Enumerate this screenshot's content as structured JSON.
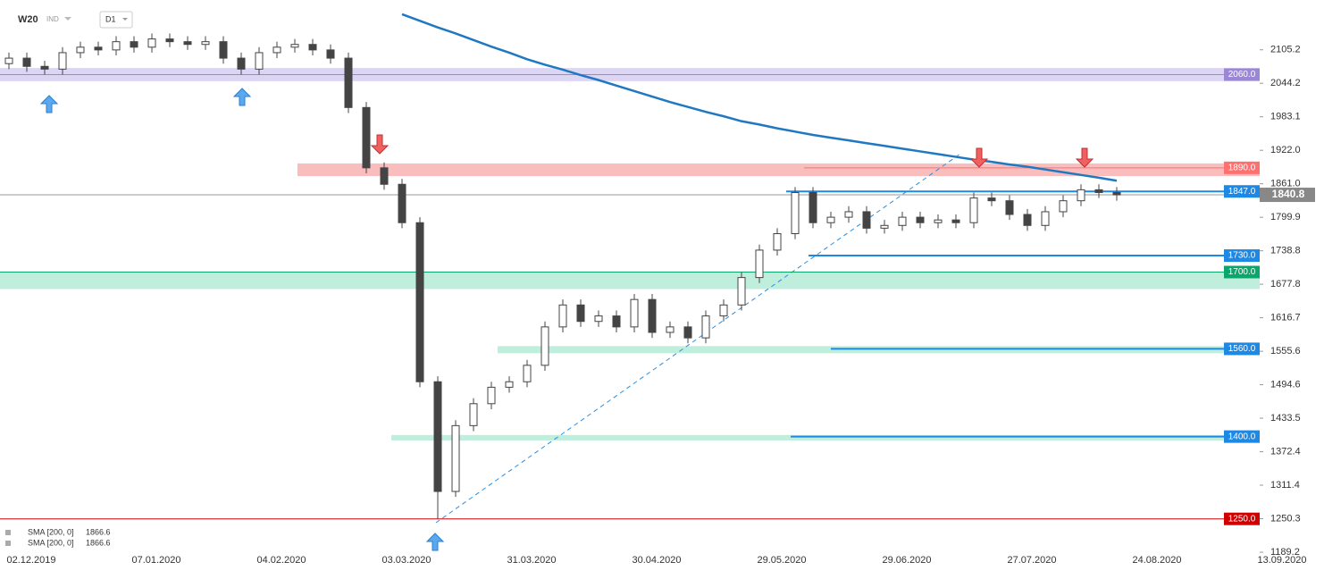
{
  "chart_data": {
    "type": "candlestick",
    "symbol": "W20",
    "symbol_type": "IND",
    "interval": "D1",
    "xtick_labels": [
      "02.12.2019",
      "07.01.2020",
      "04.02.2020",
      "03.03.2020",
      "31.03.2020",
      "30.04.2020",
      "29.05.2020",
      "29.06.2020",
      "27.07.2020",
      "24.08.2020",
      "13.09.2020"
    ],
    "open": [
      2080,
      2090,
      2075,
      2070,
      2100,
      2110,
      2105,
      2120,
      2110,
      2125,
      2120,
      2115,
      2120,
      2090,
      2070,
      2100,
      2110,
      2115,
      2105,
      2090,
      2000,
      1890,
      1860,
      1790,
      1500,
      1300,
      1420,
      1460,
      1490,
      1500,
      1530,
      1600,
      1640,
      1610,
      1620,
      1600,
      1650,
      1590,
      1600,
      1580,
      1620,
      1640,
      1690,
      1740,
      1770,
      1845,
      1790,
      1800,
      1810,
      1780,
      1785,
      1800,
      1790,
      1795,
      1790,
      1835,
      1830,
      1805,
      1785,
      1810,
      1830,
      1850,
      1845
    ],
    "high": [
      2100,
      2100,
      2085,
      2110,
      2120,
      2120,
      2130,
      2130,
      2135,
      2135,
      2130,
      2130,
      2130,
      2100,
      2110,
      2120,
      2125,
      2125,
      2115,
      2100,
      2010,
      1900,
      1870,
      1800,
      1510,
      1430,
      1470,
      1500,
      1510,
      1540,
      1610,
      1650,
      1650,
      1630,
      1630,
      1660,
      1660,
      1610,
      1610,
      1630,
      1650,
      1700,
      1750,
      1780,
      1855,
      1855,
      1810,
      1820,
      1820,
      1795,
      1810,
      1810,
      1805,
      1805,
      1845,
      1845,
      1840,
      1815,
      1820,
      1840,
      1860,
      1860,
      1855
    ],
    "low": [
      2070,
      2065,
      2060,
      2060,
      2090,
      2095,
      2095,
      2100,
      2100,
      2110,
      2105,
      2105,
      2080,
      2060,
      2060,
      2090,
      2100,
      2095,
      2080,
      1990,
      1880,
      1850,
      1780,
      1490,
      1250,
      1290,
      1410,
      1450,
      1480,
      1490,
      1520,
      1590,
      1600,
      1600,
      1590,
      1590,
      1580,
      1580,
      1570,
      1570,
      1610,
      1630,
      1680,
      1730,
      1760,
      1780,
      1780,
      1790,
      1770,
      1770,
      1775,
      1780,
      1780,
      1780,
      1780,
      1820,
      1795,
      1775,
      1775,
      1800,
      1820,
      1835,
      1830
    ],
    "close": [
      2090,
      2075,
      2070,
      2100,
      2110,
      2105,
      2120,
      2110,
      2125,
      2120,
      2115,
      2120,
      2090,
      2070,
      2100,
      2110,
      2115,
      2105,
      2090,
      2000,
      1890,
      1860,
      1790,
      1500,
      1300,
      1420,
      1460,
      1490,
      1500,
      1530,
      1600,
      1640,
      1610,
      1620,
      1600,
      1650,
      1590,
      1600,
      1580,
      1620,
      1640,
      1690,
      1740,
      1770,
      1845,
      1790,
      1800,
      1810,
      1780,
      1785,
      1800,
      1790,
      1795,
      1790,
      1835,
      1830,
      1805,
      1785,
      1810,
      1830,
      1850,
      1845,
      1840.8
    ],
    "sma": {
      "name": "SMA [200, 0]",
      "color": "#1f78c1",
      "values": [
        null,
        null,
        null,
        null,
        null,
        null,
        null,
        null,
        null,
        null,
        null,
        null,
        null,
        null,
        null,
        null,
        null,
        null,
        null,
        null,
        null,
        null,
        2170,
        2158,
        2146,
        2135,
        2123,
        2111,
        2100,
        2088,
        2078,
        2069,
        2059,
        2050,
        2040,
        2030,
        2020,
        2010,
        2001,
        1992,
        1984,
        1975,
        1969,
        1962,
        1956,
        1950,
        1945,
        1940,
        1935,
        1930,
        1925,
        1920,
        1915,
        1910,
        1905,
        1901,
        1896,
        1892,
        1887,
        1882,
        1877,
        1872,
        1866.6
      ]
    },
    "levels": [
      {
        "value": 2060,
        "label": "2060.0",
        "color": "#9b87d6"
      },
      {
        "value": 1890,
        "label": "1890.0",
        "color": "#ff7070"
      },
      {
        "value": 1847,
        "label": "1847.0",
        "color": "#1e88e5"
      },
      {
        "value": 1730,
        "label": "1730.0",
        "color": "#1e88e5"
      },
      {
        "value": 1700,
        "label": "1700.0",
        "color": "#0aa66b"
      },
      {
        "value": 1560,
        "label": "1560.0",
        "color": "#1e88e5"
      },
      {
        "value": 1400,
        "label": "1400.0",
        "color": "#1e88e5"
      },
      {
        "value": 1250,
        "label": "1250.0",
        "color": "#d00000"
      }
    ],
    "zones": [
      {
        "low": 2048,
        "high": 2072,
        "color": "#d9d0f3"
      },
      {
        "low": 1875,
        "high": 1898,
        "color": "#f9b6b6"
      },
      {
        "low": 1669,
        "high": 1700,
        "color": "#b8ecd9"
      },
      {
        "low": 1552,
        "high": 1565,
        "color": "#b8ecd9"
      },
      {
        "low": 1393,
        "high": 1403,
        "color": "#b8ecd9"
      }
    ],
    "ylim": [
      1186,
      2196
    ],
    "yticks": [
      2105.2,
      2044.2,
      1983.1,
      {
        "value": 1922,
        "label": "1922.0"
      },
      {
        "value": 1861,
        "label": "1861.0"
      },
      1799.9,
      1738.8,
      1677.8,
      1616.7,
      1555.6,
      1494.6,
      1433.5,
      1372.4,
      1311.4,
      1250.3,
      1189.2
    ]
  }
}
